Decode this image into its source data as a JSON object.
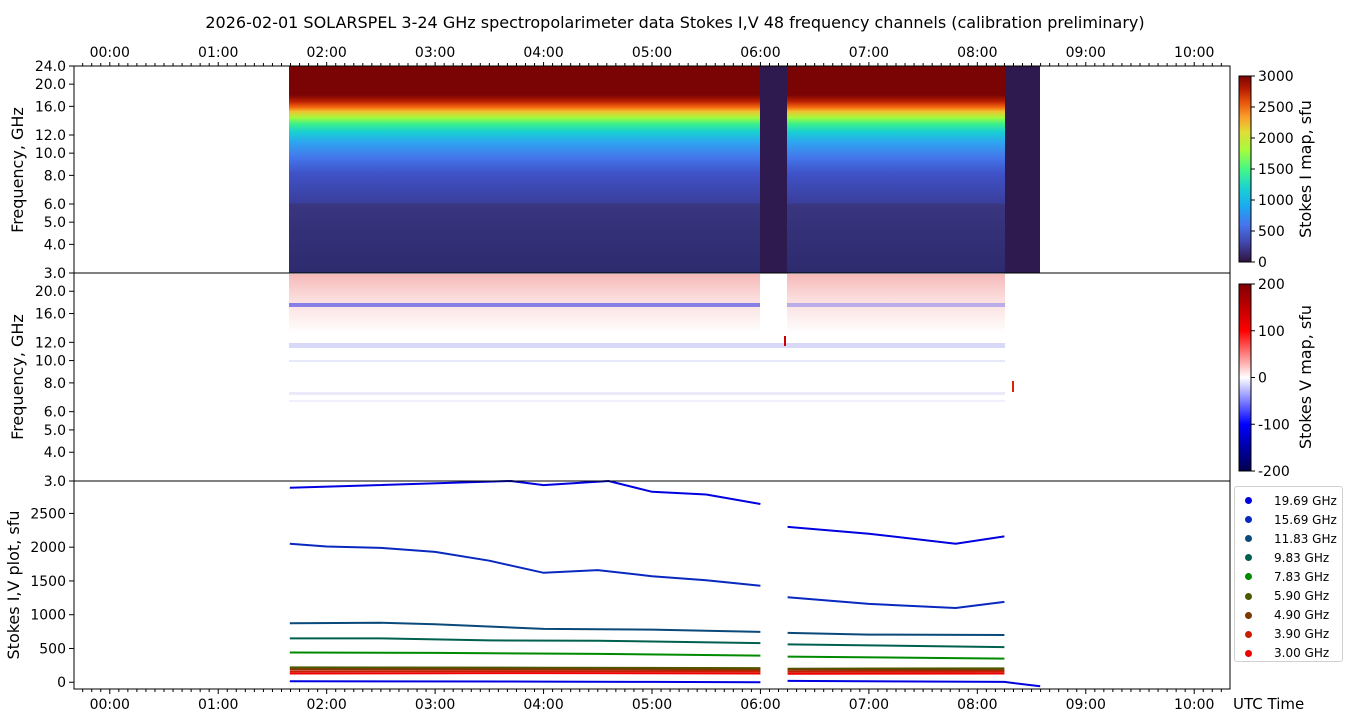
{
  "chart_data": {
    "title": "2026-02-01  SOLARSPEL  3-24 GHz spectropolarimeter data   Stokes I,V   48 frequency channels   (calibration preliminary)",
    "time_axis": {
      "label": "UTC Time",
      "ticks": [
        "00:00",
        "01:00",
        "02:00",
        "03:00",
        "04:00",
        "05:00",
        "06:00",
        "07:00",
        "08:00",
        "09:00",
        "10:00"
      ],
      "range_hours": [
        -0.33,
        10.33
      ]
    },
    "panels": [
      {
        "type": "heatmap",
        "name": "stokes-i-map",
        "ylabel": "Frequency, GHz",
        "y_ticks": [
          "3.0",
          "4.0",
          "5.0",
          "6.0",
          "8.0",
          "10.0",
          "12.0",
          "16.0",
          "20.0",
          "24.0"
        ],
        "colorbar_label": "Stokes I map, sfu",
        "colorbar_ticks": [
          "0",
          "500",
          "1000",
          "1500",
          "2000",
          "2500",
          "3000"
        ],
        "color_range": [
          0,
          3000
        ],
        "colormap": "turbo",
        "data_span_hours": [
          1.66,
          8.58
        ],
        "gaps_hours": [
          [
            6.0,
            6.25
          ],
          [
            8.27,
            8.58
          ]
        ]
      },
      {
        "type": "heatmap",
        "name": "stokes-v-map",
        "ylabel": "Frequency, GHz",
        "y_ticks": [
          "3.0",
          "4.0",
          "5.0",
          "6.0",
          "8.0",
          "10.0",
          "12.0",
          "16.0",
          "20.0"
        ],
        "colorbar_label": "Stokes V map, sfu",
        "colorbar_ticks": [
          "-200",
          "-100",
          "0",
          "100",
          "200"
        ],
        "color_range": [
          -200,
          200
        ],
        "colormap": "seismic"
      },
      {
        "type": "line",
        "name": "stokes-iv-plot",
        "ylabel": "Stokes I,V plot, sfu",
        "y_ticks": [
          "0",
          "500",
          "1000",
          "1500",
          "2000",
          "2500"
        ],
        "ylim": [
          -100,
          2980
        ],
        "series": [
          {
            "name": "19.69 GHz",
            "color": "#0000e0",
            "points": [
              [
                1.66,
                2880
              ],
              [
                3.7,
                2980
              ],
              [
                4.0,
                2920
              ],
              [
                4.6,
                2980
              ],
              [
                5.0,
                2820
              ],
              [
                5.5,
                2780
              ],
              [
                6.0,
                2640
              ],
              [
                6.25,
                2300
              ],
              [
                7.0,
                2200
              ],
              [
                7.8,
                2050
              ],
              [
                8.25,
                2160
              ]
            ]
          },
          {
            "name": "15.69 GHz",
            "color": "#0828c0",
            "points": [
              [
                1.66,
                2050
              ],
              [
                2.0,
                2010
              ],
              [
                2.5,
                1990
              ],
              [
                3.0,
                1930
              ],
              [
                3.5,
                1800
              ],
              [
                4.0,
                1620
              ],
              [
                4.5,
                1660
              ],
              [
                5.0,
                1570
              ],
              [
                5.5,
                1510
              ],
              [
                6.0,
                1430
              ],
              [
                6.25,
                1260
              ],
              [
                7.0,
                1160
              ],
              [
                7.8,
                1100
              ],
              [
                8.25,
                1190
              ]
            ]
          },
          {
            "name": "11.83 GHz",
            "color": "#0a4a7a",
            "points": [
              [
                1.66,
                875
              ],
              [
                2.5,
                880
              ],
              [
                3.0,
                860
              ],
              [
                4.0,
                790
              ],
              [
                5.0,
                780
              ],
              [
                6.0,
                745
              ],
              [
                6.25,
                730
              ],
              [
                7.0,
                705
              ],
              [
                8.25,
                700
              ]
            ]
          },
          {
            "name": "9.83 GHz",
            "color": "#006050",
            "points": [
              [
                1.66,
                650
              ],
              [
                2.5,
                650
              ],
              [
                3.5,
                620
              ],
              [
                4.5,
                615
              ],
              [
                6.0,
                580
              ],
              [
                6.25,
                560
              ],
              [
                8.25,
                520
              ]
            ]
          },
          {
            "name": "7.83 GHz",
            "color": "#008a00",
            "points": [
              [
                1.66,
                440
              ],
              [
                3.0,
                435
              ],
              [
                4.5,
                420
              ],
              [
                6.0,
                395
              ],
              [
                6.25,
                380
              ],
              [
                8.25,
                350
              ]
            ]
          },
          {
            "name": "5.90 GHz",
            "color": "#4a5a00",
            "points": [
              [
                1.66,
                220
              ],
              [
                4.0,
                215
              ],
              [
                6.0,
                210
              ],
              [
                6.25,
                200
              ],
              [
                8.25,
                205
              ]
            ]
          },
          {
            "name": "4.90 GHz",
            "color": "#7a3a00",
            "points": [
              [
                1.66,
                195
              ],
              [
                4.0,
                195
              ],
              [
                6.0,
                185
              ],
              [
                6.25,
                185
              ],
              [
                8.25,
                180
              ]
            ]
          },
          {
            "name": "3.90 GHz",
            "color": "#c81e00",
            "points": [
              [
                1.66,
                160
              ],
              [
                4.0,
                165
              ],
              [
                6.0,
                160
              ],
              [
                6.25,
                155
              ],
              [
                8.25,
                160
              ]
            ]
          },
          {
            "name": "3.00 GHz",
            "color": "#ee0000",
            "points": [
              [
                1.66,
                130
              ],
              [
                4.0,
                135
              ],
              [
                6.0,
                130
              ],
              [
                6.25,
                125
              ],
              [
                8.25,
                130
              ]
            ]
          }
        ],
        "v_series": {
          "color": "#0000e0",
          "points": [
            [
              1.66,
              15
            ],
            [
              4.0,
              10
            ],
            [
              5.0,
              5
            ],
            [
              6.0,
              0
            ],
            [
              6.25,
              20
            ],
            [
              8.25,
              5
            ],
            [
              8.58,
              -60
            ]
          ]
        }
      }
    ]
  }
}
